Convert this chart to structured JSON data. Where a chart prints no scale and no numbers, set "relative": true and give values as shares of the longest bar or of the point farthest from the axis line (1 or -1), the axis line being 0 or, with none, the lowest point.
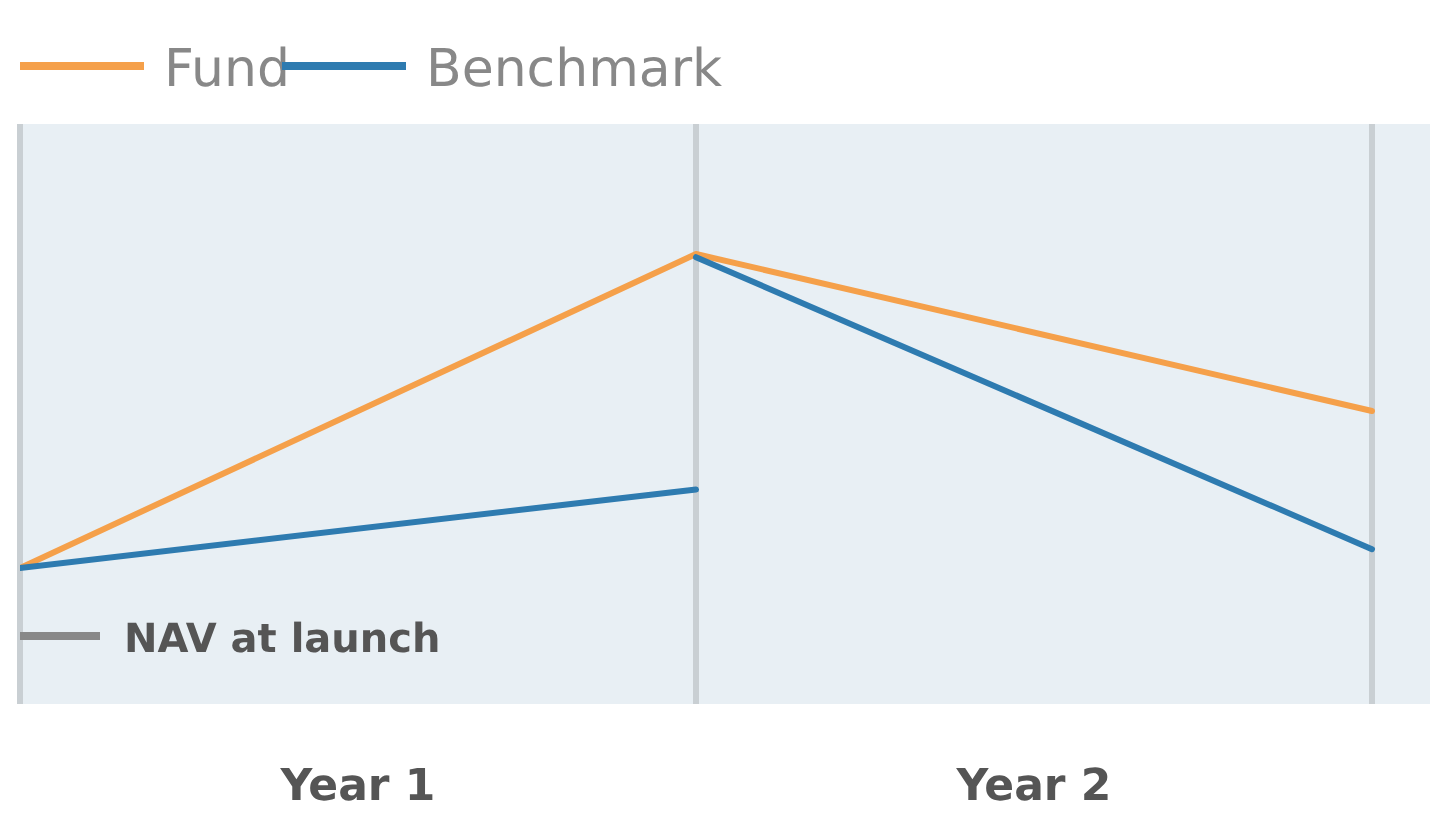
{
  "chart_data": {
    "type": "line",
    "relative": true,
    "categories": [
      null,
      null,
      null
    ],
    "series": [
      {
        "name": "Fund",
        "color": "#f5a04a",
        "values": [
          0,
          1,
          0.5
        ]
      },
      {
        "name": "Benchmark",
        "color": "#2e7bb0",
        "values": [
          0,
          0.25,
          null
        ]
      },
      {
        "color": "#2e7bb0",
        "values": [
          null,
          0.99,
          0.06
        ]
      }
    ],
    "annotations": [
      "NAV at launch",
      "Year 1",
      "Year 2"
    ],
    "legend": "top left",
    "grid": "x",
    "marker": "none",
    "line_style": "solid"
  }
}
